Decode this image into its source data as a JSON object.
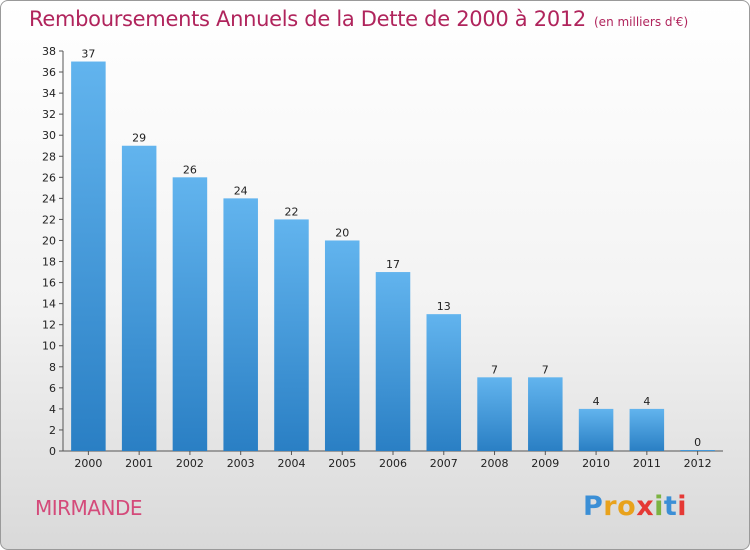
{
  "chart_data": {
    "type": "bar",
    "title": "Remboursements Annuels de la Dette de 2000 à 2012",
    "subtitle": "(en milliers d'€)",
    "categories": [
      "2000",
      "2001",
      "2002",
      "2003",
      "2004",
      "2005",
      "2006",
      "2007",
      "2008",
      "2009",
      "2010",
      "2011",
      "2012"
    ],
    "values": [
      37,
      29,
      26,
      24,
      22,
      20,
      17,
      13,
      7,
      7,
      4,
      4,
      0
    ],
    "data_labels": [
      "37",
      "29",
      "26",
      "24",
      "22",
      "20",
      "17",
      "13",
      "7",
      "7",
      "4",
      "4",
      "0"
    ],
    "xlabel": "",
    "ylabel": "",
    "ylim": [
      0,
      38
    ],
    "yticks": [
      "0",
      "2",
      "4",
      "6",
      "8",
      "10",
      "12",
      "14",
      "16",
      "18",
      "20",
      "22",
      "24",
      "26",
      "28",
      "30",
      "32",
      "34",
      "36",
      "38"
    ],
    "grid": false,
    "bar_color_top": "#62b4ee",
    "bar_color_bottom": "#2a7fc4"
  },
  "footer": {
    "commune": "MIRMANDE",
    "logo": "Proxiti"
  },
  "colors": {
    "title": "#b0245c",
    "commune": "#d44a7a",
    "logo_letters": [
      "#3b8fd6",
      "#e8a21c",
      "#e8a21c",
      "#e53935",
      "#7cb342",
      "#3b8fd6",
      "#e53935"
    ]
  }
}
